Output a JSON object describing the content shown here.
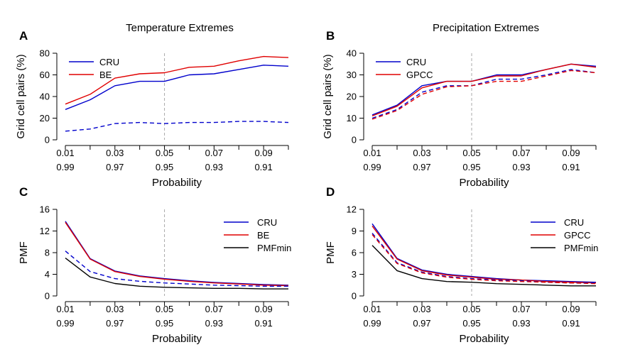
{
  "chart_data": [
    {
      "panel": "A",
      "type": "line",
      "title": "Temperature Extremes",
      "xlabel": "Probability",
      "ylabel": "Grid cell pairs (%)",
      "x": [
        0.01,
        0.02,
        0.03,
        0.04,
        0.05,
        0.06,
        0.07,
        0.08,
        0.09,
        0.1
      ],
      "x_tick_values": [
        0.01,
        0.03,
        0.05,
        0.07,
        0.09
      ],
      "x_tick_labels_top": [
        "0.01",
        "0.03",
        "0.05",
        "0.07",
        "0.09"
      ],
      "x_tick_labels_bottom": [
        "0.99",
        "0.97",
        "0.95",
        "0.93",
        "0.91"
      ],
      "ylim": [
        0,
        80
      ],
      "y_ticks": [
        0,
        20,
        40,
        60,
        80
      ],
      "vline": 0.05,
      "legend": [
        "CRU",
        "BE"
      ],
      "series": [
        {
          "name": "CRU",
          "color": "#0000cc",
          "style": "solid",
          "values": [
            28,
            37,
            50,
            54,
            54,
            60,
            61,
            65,
            69,
            68
          ]
        },
        {
          "name": "BE",
          "color": "#e00000",
          "style": "solid",
          "values": [
            33,
            42,
            57,
            61,
            62,
            67,
            68,
            73,
            77,
            76
          ]
        },
        {
          "name": "CRU dashed",
          "color": "#0000cc",
          "style": "dashed",
          "values": [
            8,
            10,
            15,
            16,
            15,
            16,
            16,
            17,
            17,
            16
          ]
        }
      ]
    },
    {
      "panel": "B",
      "type": "line",
      "title": "Precipitation Extremes",
      "xlabel": "Probability",
      "ylabel": "Grid cell pairs (%)",
      "x": [
        0.01,
        0.02,
        0.03,
        0.04,
        0.05,
        0.06,
        0.07,
        0.08,
        0.09,
        0.1
      ],
      "x_tick_values": [
        0.01,
        0.03,
        0.05,
        0.07,
        0.09
      ],
      "x_tick_labels_top": [
        "0.01",
        "0.03",
        "0.05",
        "0.07",
        "0.09"
      ],
      "x_tick_labels_bottom": [
        "0.99",
        "0.97",
        "0.95",
        "0.93",
        "0.91"
      ],
      "ylim": [
        0,
        40
      ],
      "y_ticks": [
        0,
        10,
        20,
        30,
        40
      ],
      "vline": 0.05,
      "legend": [
        "CRU",
        "GPCC"
      ],
      "series": [
        {
          "name": "CRU",
          "color": "#0000cc",
          "style": "solid",
          "values": [
            11.5,
            16,
            25,
            27,
            27,
            30,
            30,
            32.5,
            35,
            34
          ]
        },
        {
          "name": "GPCC",
          "color": "#e00000",
          "style": "solid",
          "values": [
            11,
            15.5,
            24,
            27,
            27,
            29.5,
            29.5,
            32.5,
            35,
            33.5
          ]
        },
        {
          "name": "CRU dashed",
          "color": "#0000cc",
          "style": "dashed",
          "values": [
            10,
            14,
            22,
            25,
            25,
            28,
            28,
            30,
            32.5,
            31
          ]
        },
        {
          "name": "GPCC dashed",
          "color": "#e00000",
          "style": "dashed",
          "values": [
            9.5,
            13.5,
            21,
            24.5,
            25,
            27,
            27,
            29.5,
            32,
            31
          ]
        }
      ]
    },
    {
      "panel": "C",
      "type": "line",
      "title": "",
      "xlabel": "Probability",
      "ylabel": "PMF",
      "x": [
        0.01,
        0.02,
        0.03,
        0.04,
        0.05,
        0.06,
        0.07,
        0.08,
        0.09,
        0.1
      ],
      "x_tick_values": [
        0.01,
        0.03,
        0.05,
        0.07,
        0.09
      ],
      "x_tick_labels_top": [
        "0.01",
        "0.03",
        "0.05",
        "0.07",
        "0.09"
      ],
      "x_tick_labels_bottom": [
        "0.99",
        "0.97",
        "0.95",
        "0.93",
        "0.91"
      ],
      "ylim": [
        0,
        16
      ],
      "y_ticks": [
        0,
        4,
        8,
        12,
        16
      ],
      "vline": 0.05,
      "legend": [
        "CRU",
        "BE",
        "PMFmin"
      ],
      "series": [
        {
          "name": "CRU",
          "color": "#0000cc",
          "style": "solid",
          "values": [
            13.8,
            6.9,
            4.6,
            3.7,
            3.2,
            2.8,
            2.5,
            2.3,
            2.1,
            2.0
          ]
        },
        {
          "name": "BE",
          "color": "#e00000",
          "style": "solid",
          "values": [
            13.6,
            6.8,
            4.5,
            3.6,
            3.1,
            2.7,
            2.4,
            2.2,
            2.0,
            1.9
          ]
        },
        {
          "name": "PMFmin",
          "color": "#000000",
          "style": "solid",
          "values": [
            7.0,
            3.5,
            2.3,
            1.8,
            1.6,
            1.5,
            1.4,
            1.4,
            1.3,
            1.3
          ]
        },
        {
          "name": "CRU dashed",
          "color": "#0000cc",
          "style": "dashed",
          "values": [
            8.3,
            4.5,
            3.2,
            2.7,
            2.4,
            2.2,
            2.0,
            1.9,
            1.8,
            1.8
          ]
        }
      ]
    },
    {
      "panel": "D",
      "type": "line",
      "title": "",
      "xlabel": "Probability",
      "ylabel": "PMF",
      "x": [
        0.01,
        0.02,
        0.03,
        0.04,
        0.05,
        0.06,
        0.07,
        0.08,
        0.09,
        0.1
      ],
      "x_tick_values": [
        0.01,
        0.03,
        0.05,
        0.07,
        0.09
      ],
      "x_tick_labels_top": [
        "0.01",
        "0.03",
        "0.05",
        "0.07",
        "0.09"
      ],
      "x_tick_labels_bottom": [
        "0.99",
        "0.97",
        "0.95",
        "0.93",
        "0.91"
      ],
      "ylim": [
        0,
        12
      ],
      "y_ticks": [
        0,
        3,
        6,
        9,
        12
      ],
      "vline": 0.05,
      "legend": [
        "CRU",
        "GPCC",
        "PMFmin"
      ],
      "series": [
        {
          "name": "CRU",
          "color": "#0000cc",
          "style": "solid",
          "values": [
            10.0,
            5.2,
            3.6,
            3.0,
            2.7,
            2.4,
            2.2,
            2.1,
            2.0,
            1.9
          ]
        },
        {
          "name": "GPCC",
          "color": "#e00000",
          "style": "solid",
          "values": [
            9.7,
            5.1,
            3.5,
            2.9,
            2.6,
            2.3,
            2.2,
            2.0,
            1.9,
            1.8
          ]
        },
        {
          "name": "PMFmin",
          "color": "#000000",
          "style": "solid",
          "values": [
            7.0,
            3.5,
            2.4,
            2.0,
            1.9,
            1.7,
            1.6,
            1.5,
            1.4,
            1.4
          ]
        },
        {
          "name": "CRU dashed",
          "color": "#0000cc",
          "style": "dashed",
          "values": [
            8.7,
            4.6,
            3.3,
            2.7,
            2.4,
            2.2,
            2.1,
            1.9,
            1.8,
            1.8
          ]
        },
        {
          "name": "GPCC dashed",
          "color": "#e00000",
          "style": "dashed",
          "values": [
            8.5,
            4.5,
            3.2,
            2.6,
            2.3,
            2.1,
            2.0,
            1.9,
            1.8,
            1.7
          ]
        }
      ]
    }
  ]
}
